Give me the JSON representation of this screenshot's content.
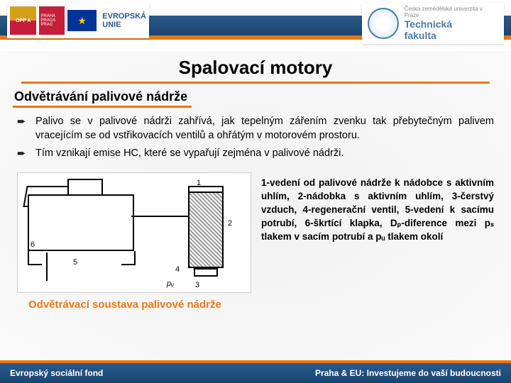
{
  "header": {
    "oppa": "OPP\nA",
    "praha": "PRAHA\nPRAGA\nPRAG",
    "eu_text": "EVROPSKÁ\nUNIE",
    "uni_small": "Česká zemědělská univerzita v Praze",
    "faculty": "Technická\nfakulta"
  },
  "title": "Spalovací motory",
  "subtitle": "Odvětrávání palivové nádrže",
  "bullets": [
    "Palivo se v palivové nádrži zahřívá, jak tepelným zářením zvenku tak přebytečným palivem vracejícím se od vstřikovacích ventilů a ohřátým v motorovém prostoru.",
    "Tím vznikají emise HC, které se vypařují zejména v palivové nádrži."
  ],
  "diagram_labels": {
    "l1": "1",
    "l2": "2",
    "l3": "3",
    "l4": "4",
    "l5": "5",
    "l6": "6",
    "pu": "pᵤ"
  },
  "legend": "1-vedení od palivové nádrže k nádobce s aktivním uhlím, 2-nádobka s aktivním uhlím, 3-čerstvý vzduch, 4-regenerační ventil, 5-vedení k sacímu potrubí, 6-škrtící klapka, Dₚ-diference mezi pₛ tlakem v sacím potrubí a pᵤ tlakem okolí",
  "caption": "Odvětrávací soustava palivové nádrže",
  "footer": {
    "left": "Evropský sociální fond",
    "right": "Praha & EU: Investujeme do vaší budoucnosti"
  },
  "colors": {
    "accent": "#e67817",
    "bar": "#1a4570"
  }
}
